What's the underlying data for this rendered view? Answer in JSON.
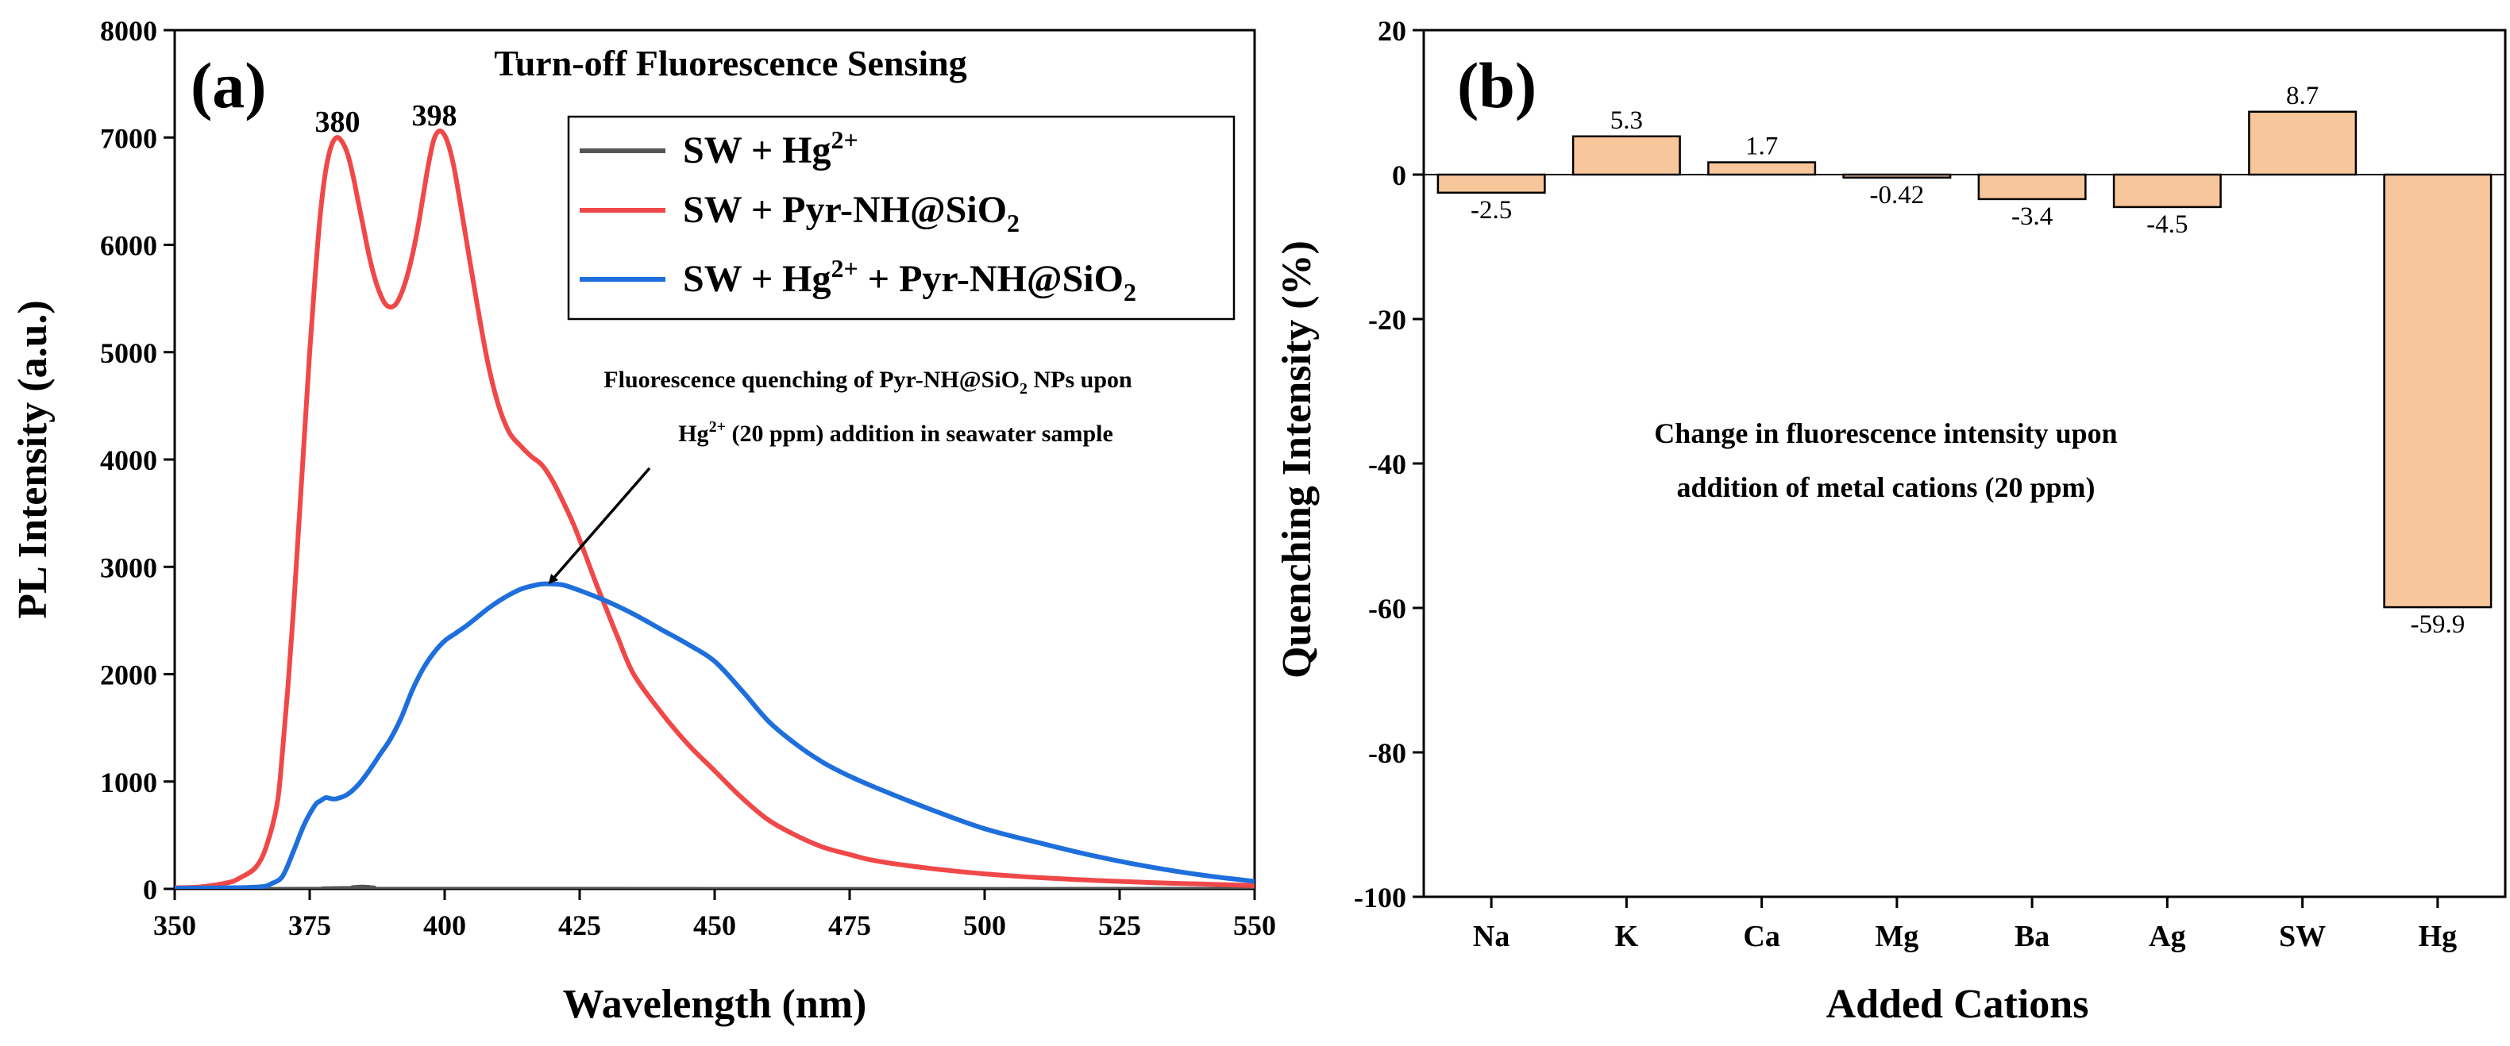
{
  "chart_data": [
    {
      "panel_label": "(a)",
      "type": "line",
      "title": "Turn-off Fluorescence Sensing",
      "xlabel": "Wavelength (nm)",
      "ylabel": "PL Intensity (a.u.)",
      "xlim": [
        350,
        550
      ],
      "ylim": [
        0,
        8000
      ],
      "xticks": [
        "350",
        "375",
        "400",
        "425",
        "450",
        "475",
        "500",
        "525",
        "550"
      ],
      "yticks": [
        "0",
        "1000",
        "2000",
        "3000",
        "4000",
        "5000",
        "6000",
        "7000",
        "8000"
      ],
      "peak_labels": [
        {
          "text": "380",
          "x": 380,
          "y": 7000
        },
        {
          "text": "398",
          "x": 398,
          "y": 7060
        }
      ],
      "annotation": {
        "line1_pre": "Fluorescence quenching of Pyr-NH@SiO",
        "line1_sub": "2",
        "line1_post": " NPs upon",
        "line2_pre": "Hg",
        "line2_sup": "2+",
        "line2_post": " (20 ppm) addition in seawater sample",
        "arrow_target": {
          "x": 420,
          "y": 2880
        }
      },
      "legend": {
        "position": "top-right",
        "entries": [
          {
            "pre": "SW + Hg",
            "sup": "2+",
            "mid": "",
            "sub": "",
            "post": "",
            "color": "#555555"
          },
          {
            "pre": "SW + Pyr-NH@SiO",
            "sup": "",
            "mid": "",
            "sub": "2",
            "post": "",
            "color": "#f04848"
          },
          {
            "pre": "SW + Hg",
            "sup": "2+",
            "mid": " + Pyr-NH@SiO",
            "sub": "2",
            "post": "",
            "color": "#1e6fdc"
          }
        ]
      },
      "series": [
        {
          "name": "SW + Hg2+",
          "color": "#555555",
          "x": [
            350,
            380,
            383,
            385,
            387,
            390,
            550
          ],
          "y": [
            0,
            0,
            15,
            20,
            12,
            0,
            0
          ]
        },
        {
          "name": "SW + Pyr-NH@SiO2",
          "color": "#f04848",
          "x": [
            350,
            355,
            360,
            362,
            365,
            367,
            369,
            370,
            371,
            372,
            373,
            374,
            375,
            376,
            377,
            378,
            379,
            380,
            381,
            382,
            383,
            384,
            385,
            386,
            387,
            388,
            389,
            390,
            391,
            392,
            393,
            394,
            395,
            396,
            397,
            398,
            399,
            400,
            401,
            402,
            404,
            406,
            408,
            410,
            412,
            414,
            416,
            418,
            420,
            422,
            424,
            426,
            428,
            430,
            432,
            435,
            440,
            445,
            450,
            455,
            460,
            465,
            470,
            475,
            480,
            490,
            500,
            510,
            520,
            530,
            540,
            550
          ],
          "y": [
            10,
            20,
            60,
            100,
            200,
            400,
            800,
            1300,
            1900,
            2600,
            3400,
            4200,
            5000,
            5700,
            6300,
            6700,
            6920,
            7000,
            6960,
            6850,
            6650,
            6400,
            6150,
            5900,
            5700,
            5550,
            5450,
            5420,
            5450,
            5550,
            5700,
            5900,
            6150,
            6450,
            6750,
            6980,
            7060,
            7020,
            6880,
            6650,
            6050,
            5450,
            4900,
            4500,
            4250,
            4130,
            4030,
            3950,
            3800,
            3600,
            3380,
            3120,
            2850,
            2600,
            2350,
            2000,
            1650,
            1350,
            1100,
            850,
            640,
            500,
            390,
            320,
            260,
            190,
            140,
            105,
            80,
            60,
            45,
            30
          ]
        },
        {
          "name": "SW + Hg2+ + Pyr-NH@SiO2",
          "color": "#1e6fdc",
          "x": [
            350,
            360,
            366,
            368,
            370,
            372,
            374,
            376,
            377,
            378,
            379,
            380,
            382,
            384,
            386,
            388,
            390,
            392,
            394,
            396,
            398,
            400,
            402,
            404,
            406,
            408,
            410,
            412,
            414,
            416,
            418,
            420,
            422,
            425,
            430,
            435,
            440,
            445,
            450,
            455,
            460,
            465,
            470,
            475,
            480,
            490,
            500,
            510,
            520,
            530,
            540,
            550
          ],
          "y": [
            5,
            10,
            20,
            50,
            120,
            350,
            600,
            780,
            820,
            850,
            840,
            840,
            880,
            970,
            1100,
            1250,
            1400,
            1600,
            1850,
            2050,
            2200,
            2310,
            2380,
            2450,
            2530,
            2610,
            2680,
            2740,
            2790,
            2820,
            2840,
            2840,
            2830,
            2780,
            2680,
            2560,
            2420,
            2280,
            2120,
            1850,
            1560,
            1350,
            1180,
            1050,
            940,
            740,
            560,
            430,
            310,
            210,
            130,
            70
          ]
        }
      ]
    },
    {
      "panel_label": "(b)",
      "type": "bar",
      "title": "",
      "xlabel": "Added Cations",
      "ylabel": "Quenching Intensity (%)",
      "ylim": [
        -100,
        20
      ],
      "yticks": [
        "20",
        "0",
        "-20",
        "-40",
        "-60",
        "-80",
        "-100"
      ],
      "categories": [
        "Na",
        "K",
        "Ca",
        "Mg",
        "Ba",
        "Ag",
        "SW",
        "Hg"
      ],
      "values": [
        -2.5,
        5.3,
        1.7,
        -0.42,
        -3.4,
        -4.5,
        8.7,
        -59.9
      ],
      "value_labels": [
        "-2.5",
        "5.3",
        "1.7",
        "-0.42",
        "-3.4",
        "-4.5",
        "8.7",
        "-59.9"
      ],
      "bar_color": "#f7c79b",
      "annotation_lines": [
        "Change in fluorescence intensity upon",
        "addition of metal cations (20 ppm)"
      ]
    }
  ]
}
